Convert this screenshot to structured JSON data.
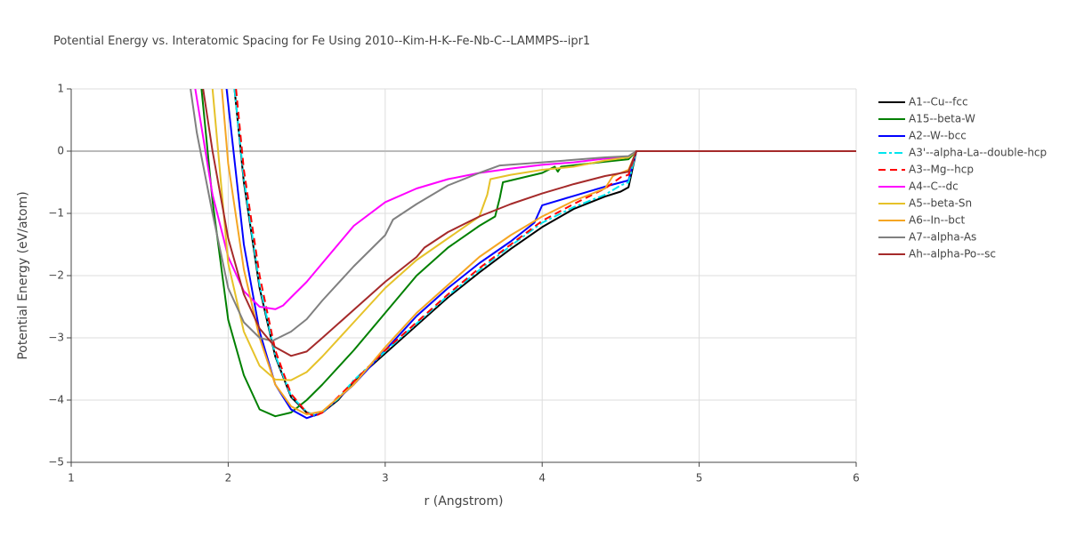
{
  "chart_data": {
    "type": "line",
    "title": "Potential Energy vs. Interatomic Spacing for Fe Using 2010--Kim-H-K--Fe-Nb-C--LAMMPS--ipr1",
    "x_label": "r (Angstrom)",
    "y_label": "Potential Energy (eV/atom)",
    "xlim": [
      1,
      6
    ],
    "ylim": [
      -5,
      1
    ],
    "xticks": [
      1,
      2,
      3,
      4,
      5,
      6
    ],
    "yticks": [
      1,
      0,
      {
        "value": -1,
        "label": "−1"
      },
      {
        "value": -2,
        "label": "−2"
      },
      {
        "value": -3,
        "label": "−3"
      },
      {
        "value": -4,
        "label": "−4"
      },
      {
        "value": -5,
        "label": "−5"
      }
    ],
    "grid": true,
    "legend": "right",
    "series": [
      {
        "name": "A1--Cu--fcc",
        "color": "#000000",
        "dash": "solid",
        "x": [
          2.04,
          2.1,
          2.2,
          2.3,
          2.4,
          2.5,
          2.55,
          2.6,
          2.7,
          2.8,
          3.0,
          3.2,
          3.4,
          3.6,
          3.8,
          4.0,
          4.2,
          4.4,
          4.5,
          4.55,
          4.6,
          6
        ],
        "values": [
          1,
          -0.5,
          -2.2,
          -3.3,
          -3.95,
          -4.2,
          -4.25,
          -4.2,
          -4.0,
          -3.7,
          -3.25,
          -2.8,
          -2.35,
          -1.95,
          -1.57,
          -1.22,
          -0.93,
          -0.73,
          -0.65,
          -0.58,
          0,
          0
        ]
      },
      {
        "name": "A15--beta-W",
        "color": "#008000",
        "dash": "solid",
        "x": [
          1.83,
          1.9,
          2.0,
          2.1,
          2.2,
          2.3,
          2.4,
          2.5,
          2.6,
          2.8,
          3.0,
          3.2,
          3.4,
          3.6,
          3.7,
          3.73,
          3.75,
          4.0,
          4.08,
          4.1,
          4.12,
          4.4,
          4.55,
          4.6,
          6
        ],
        "values": [
          1,
          -0.8,
          -2.71,
          -3.6,
          -4.15,
          -4.26,
          -4.2,
          -4.0,
          -3.75,
          -3.2,
          -2.6,
          -2.0,
          -1.55,
          -1.2,
          -1.05,
          -0.75,
          -0.5,
          -0.35,
          -0.25,
          -0.33,
          -0.25,
          -0.17,
          -0.13,
          0,
          0
        ]
      },
      {
        "name": "A2--W--bcc",
        "color": "#0000ff",
        "dash": "solid",
        "x": [
          1.99,
          2.1,
          2.2,
          2.3,
          2.4,
          2.5,
          2.6,
          2.8,
          3.0,
          3.2,
          3.4,
          3.6,
          3.8,
          3.95,
          4.0,
          4.2,
          4.4,
          4.55,
          4.6,
          6
        ],
        "values": [
          1,
          -1.5,
          -2.9,
          -3.75,
          -4.15,
          -4.29,
          -4.2,
          -3.75,
          -3.2,
          -2.65,
          -2.2,
          -1.8,
          -1.45,
          -1.15,
          -0.87,
          -0.72,
          -0.57,
          -0.47,
          0,
          0
        ]
      },
      {
        "name": "A3'--alpha-La--double-hcp",
        "color": "#00e5ee",
        "dash": "dashdot",
        "x": [
          2.04,
          2.1,
          2.2,
          2.3,
          2.4,
          2.5,
          2.55,
          2.6,
          2.7,
          2.8,
          3.0,
          3.2,
          3.4,
          3.6,
          3.8,
          4.0,
          4.2,
          4.4,
          4.5,
          4.55,
          4.6,
          6
        ],
        "values": [
          1,
          -0.45,
          -2.15,
          -3.28,
          -3.93,
          -4.19,
          -4.24,
          -4.19,
          -3.98,
          -3.68,
          -3.22,
          -2.77,
          -2.32,
          -1.91,
          -1.52,
          -1.15,
          -0.9,
          -0.7,
          -0.55,
          -0.5,
          0,
          0
        ]
      },
      {
        "name": "A3--Mg--hcp",
        "color": "#ff0000",
        "dash": "dash",
        "x": [
          2.05,
          2.1,
          2.2,
          2.3,
          2.4,
          2.5,
          2.55,
          2.6,
          2.8,
          3.0,
          3.2,
          3.4,
          3.6,
          3.8,
          4.0,
          4.2,
          4.4,
          4.5,
          4.55,
          4.6,
          6
        ],
        "values": [
          1,
          -0.3,
          -2.0,
          -3.2,
          -3.9,
          -4.2,
          -4.26,
          -4.2,
          -3.7,
          -3.2,
          -2.75,
          -2.3,
          -1.88,
          -1.5,
          -1.12,
          -0.85,
          -0.6,
          -0.42,
          -0.38,
          0,
          0
        ]
      },
      {
        "name": "A4--C--dc",
        "color": "#ff00ff",
        "dash": "solid",
        "x": [
          1.79,
          1.9,
          2.0,
          2.1,
          2.2,
          2.3,
          2.35,
          2.4,
          2.5,
          2.6,
          2.8,
          3.0,
          3.2,
          3.4,
          3.6,
          3.8,
          4.0,
          4.2,
          4.4,
          4.55,
          4.6,
          6
        ],
        "values": [
          1,
          -0.7,
          -1.7,
          -2.25,
          -2.5,
          -2.54,
          -2.48,
          -2.35,
          -2.1,
          -1.8,
          -1.2,
          -0.82,
          -0.6,
          -0.45,
          -0.35,
          -0.28,
          -0.22,
          -0.18,
          -0.12,
          -0.1,
          0,
          0
        ]
      },
      {
        "name": "A5--beta-Sn",
        "color": "#e6c229",
        "dash": "solid",
        "x": [
          1.9,
          2.0,
          2.1,
          2.2,
          2.3,
          2.4,
          2.5,
          2.6,
          2.8,
          3.0,
          3.2,
          3.4,
          3.6,
          3.65,
          3.67,
          3.8,
          4.0,
          4.2,
          4.4,
          4.55,
          4.6,
          6
        ],
        "values": [
          1,
          -1.8,
          -2.9,
          -3.45,
          -3.67,
          -3.68,
          -3.55,
          -3.3,
          -2.75,
          -2.2,
          -1.75,
          -1.4,
          -1.05,
          -0.7,
          -0.45,
          -0.38,
          -0.3,
          -0.25,
          -0.15,
          -0.1,
          0,
          0
        ]
      },
      {
        "name": "A6--In--bct",
        "color": "#f5a623",
        "dash": "solid",
        "x": [
          1.96,
          2.0,
          2.1,
          2.2,
          2.3,
          2.4,
          2.5,
          2.6,
          2.8,
          3.0,
          3.2,
          3.4,
          3.6,
          3.8,
          4.0,
          4.2,
          4.4,
          4.45,
          4.55,
          4.6,
          6
        ],
        "values": [
          1,
          -0.2,
          -1.9,
          -3.0,
          -3.75,
          -4.1,
          -4.23,
          -4.18,
          -3.75,
          -3.15,
          -2.6,
          -2.15,
          -1.7,
          -1.35,
          -1.05,
          -0.8,
          -0.6,
          -0.4,
          -0.3,
          0,
          0
        ]
      },
      {
        "name": "A7--alpha-As",
        "color": "#808080",
        "dash": "solid",
        "x": [
          1.76,
          1.8,
          1.9,
          2.0,
          2.1,
          2.2,
          2.28,
          2.4,
          2.5,
          2.6,
          2.8,
          3.0,
          3.05,
          3.2,
          3.4,
          3.6,
          3.73,
          4.0,
          4.2,
          4.4,
          4.55,
          4.6,
          6
        ],
        "values": [
          1,
          0.3,
          -1.0,
          -2.2,
          -2.75,
          -3.0,
          -3.05,
          -2.9,
          -2.7,
          -2.4,
          -1.85,
          -1.35,
          -1.1,
          -0.85,
          -0.55,
          -0.35,
          -0.23,
          -0.18,
          -0.14,
          -0.1,
          -0.08,
          0,
          0
        ]
      },
      {
        "name": "Ah--alpha-Po--sc",
        "color": "#a52a2a",
        "dash": "solid",
        "x": [
          1.84,
          1.9,
          2.0,
          2.1,
          2.2,
          2.3,
          2.4,
          2.5,
          2.6,
          2.8,
          3.0,
          3.2,
          3.25,
          3.4,
          3.6,
          3.8,
          4.0,
          4.2,
          4.4,
          4.55,
          4.6,
          6
        ],
        "values": [
          1,
          0,
          -1.4,
          -2.3,
          -2.85,
          -3.15,
          -3.29,
          -3.22,
          -3.0,
          -2.55,
          -2.1,
          -1.7,
          -1.55,
          -1.3,
          -1.05,
          -0.85,
          -0.68,
          -0.53,
          -0.4,
          -0.33,
          0,
          0
        ]
      }
    ]
  }
}
